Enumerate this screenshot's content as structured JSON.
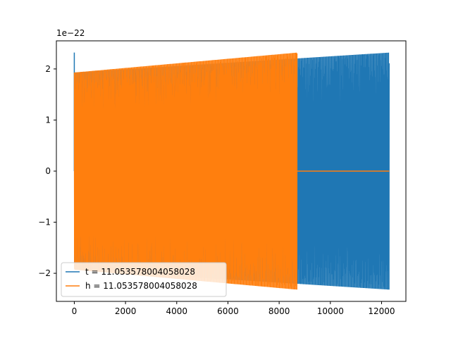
{
  "chart_data": {
    "type": "line",
    "title": "",
    "xlabel": "",
    "ylabel": "",
    "y_offset_label": "1e−22",
    "xlim": [
      -700,
      12950
    ],
    "ylim": [
      -2.55,
      2.55
    ],
    "x_ticks": [
      0,
      2000,
      4000,
      6000,
      8000,
      10000,
      12000
    ],
    "x_tick_labels": [
      "0",
      "2000",
      "4000",
      "6000",
      "8000",
      "10000",
      "12000"
    ],
    "y_ticks": [
      -2,
      -1,
      0,
      1,
      2
    ],
    "y_tick_labels": [
      "−2",
      "−1",
      "0",
      "1",
      "2"
    ],
    "grid": false,
    "legend_position": "lower-left",
    "series": [
      {
        "name": "t = 11.053578004058028",
        "color": "#1f77b4",
        "x_start": 0,
        "x_end": 12300,
        "envelope_start": 1.93,
        "envelope_end": 2.32,
        "initial_spike": 2.32
      },
      {
        "name": "h = 11.053578004058028",
        "color": "#ff7f0e",
        "x_start": 0,
        "x_end": 8700,
        "envelope_start": 1.93,
        "envelope_end": 2.32,
        "flat_after": 8700,
        "flat_value": 0,
        "flat_until": 12300
      }
    ]
  }
}
